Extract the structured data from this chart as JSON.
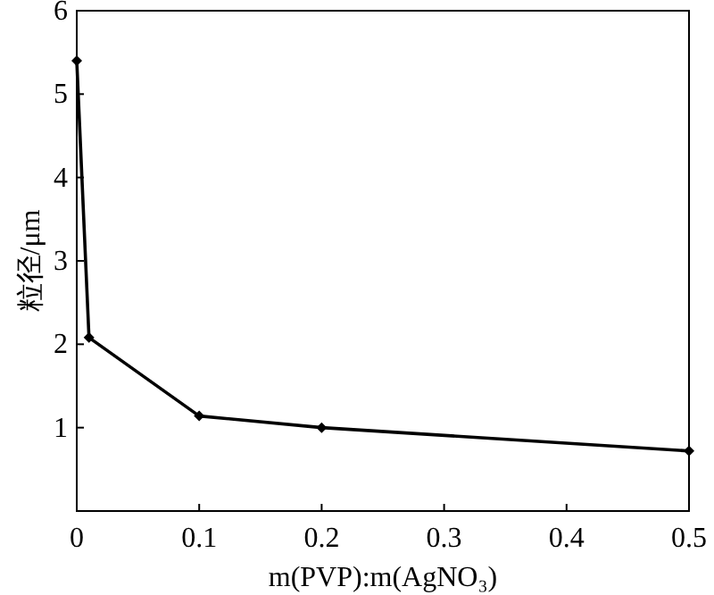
{
  "chart_data": {
    "type": "line",
    "xlabel": "m(PVP):m(AgNO₃)",
    "ylabel": "粒径/μm",
    "x": [
      0,
      0.01,
      0.1,
      0.2,
      0.5
    ],
    "series": [
      {
        "color": "#000000",
        "values": [
          5.4,
          2.08,
          1.14,
          1.0,
          0.72
        ]
      }
    ],
    "xlim": [
      0,
      0.5
    ],
    "xticks": [
      0,
      0.1,
      0.2,
      0.3,
      0.4,
      0.5
    ],
    "ylim": [
      0,
      6
    ],
    "yticks": [
      {
        "value": 0,
        "label": null
      },
      1,
      2,
      3,
      4,
      5,
      6
    ],
    "marker": "diamond",
    "line_style": "solid",
    "grid": false
  }
}
